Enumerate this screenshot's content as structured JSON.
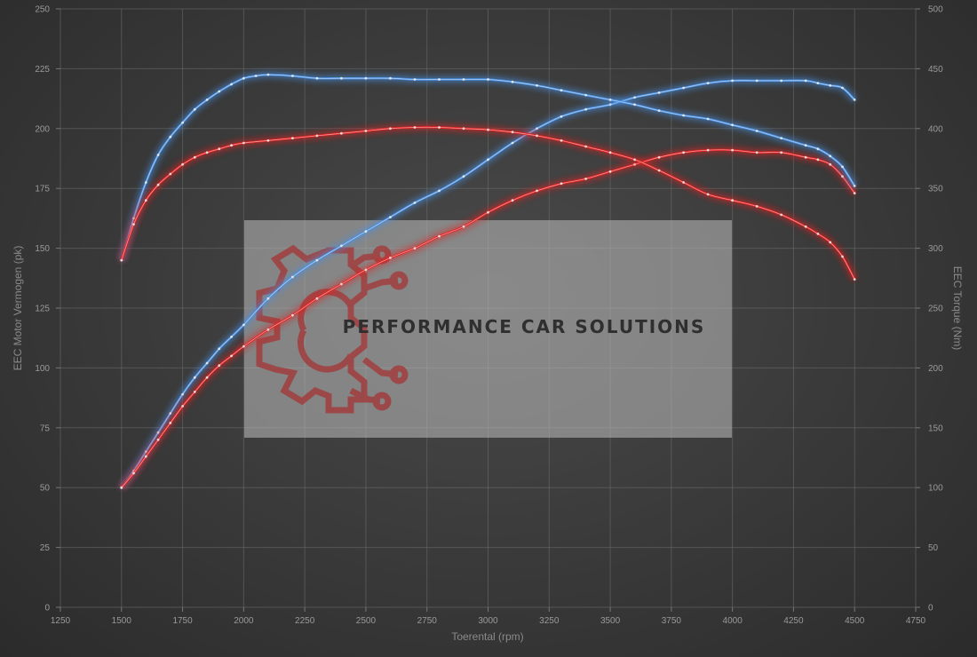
{
  "chart_data": {
    "type": "line",
    "title": "",
    "xlabel": "Toerental (rpm)",
    "ylabel_left": "EEC Motor Vermogen (pk)",
    "ylabel_right": "EEC Torque (Nm)",
    "xlim": [
      1250,
      4750
    ],
    "ylim_left": [
      0,
      250
    ],
    "ylim_right": [
      0,
      500
    ],
    "x_ticks": [
      1250,
      1500,
      1750,
      2000,
      2250,
      2500,
      2750,
      3000,
      3250,
      3500,
      3750,
      4000,
      4250,
      4500,
      4750
    ],
    "y_ticks_left": [
      0,
      25,
      50,
      75,
      100,
      125,
      150,
      175,
      200,
      225,
      250
    ],
    "y_ticks_right": [
      0,
      50,
      100,
      150,
      200,
      250,
      300,
      350,
      400,
      450,
      500
    ],
    "grid": true,
    "watermark": "PERFORMANCE CAR SOLUTIONS",
    "series": [
      {
        "axis": "left",
        "color": "#4a90e2",
        "x": [
          1500,
          1550,
          1600,
          1650,
          1700,
          1750,
          1800,
          1850,
          1900,
          1950,
          2000,
          2100,
          2200,
          2300,
          2400,
          2500,
          2600,
          2700,
          2800,
          2900,
          3000,
          3100,
          3200,
          3300,
          3400,
          3500,
          3600,
          3700,
          3800,
          3900,
          4000,
          4100,
          4200,
          4300,
          4350,
          4400,
          4450,
          4500
        ],
        "values": [
          50,
          57,
          65,
          73,
          81,
          89,
          96,
          102,
          108,
          113,
          118,
          129,
          138,
          145,
          151,
          157,
          163,
          169,
          174,
          180,
          187,
          194,
          200,
          205,
          208,
          210,
          213,
          215,
          217,
          219,
          220,
          220,
          220,
          220,
          219,
          218,
          217,
          212
        ]
      },
      {
        "axis": "left",
        "color": "#e02020",
        "x": [
          1500,
          1550,
          1600,
          1650,
          1700,
          1750,
          1800,
          1850,
          1900,
          1950,
          2000,
          2100,
          2200,
          2300,
          2400,
          2500,
          2600,
          2700,
          2800,
          2900,
          3000,
          3100,
          3200,
          3300,
          3400,
          3500,
          3600,
          3700,
          3800,
          3900,
          4000,
          4100,
          4200,
          4300,
          4350,
          4400,
          4450,
          4500
        ],
        "values": [
          50,
          56,
          63,
          70,
          77,
          84,
          90,
          96,
          101,
          105,
          109,
          116,
          122,
          129,
          135,
          141,
          146,
          150,
          155,
          159,
          165,
          170,
          174,
          177,
          179,
          182,
          185,
          188,
          190,
          191,
          191,
          190,
          190,
          188,
          187,
          185,
          180,
          173
        ]
      },
      {
        "axis": "right",
        "color": "#4a90e2",
        "x": [
          1500,
          1550,
          1600,
          1650,
          1700,
          1750,
          1800,
          1850,
          1900,
          1950,
          2000,
          2050,
          2100,
          2200,
          2300,
          2400,
          2500,
          2600,
          2700,
          2800,
          2900,
          3000,
          3100,
          3200,
          3300,
          3400,
          3500,
          3600,
          3700,
          3800,
          3900,
          4000,
          4100,
          4200,
          4300,
          4350,
          4400,
          4450,
          4500
        ],
        "values": [
          290,
          325,
          355,
          378,
          393,
          405,
          416,
          424,
          431,
          437,
          442,
          444,
          445,
          444,
          442,
          442,
          442,
          442,
          441,
          441,
          441,
          441,
          439,
          436,
          432,
          428,
          424,
          420,
          415,
          411,
          408,
          403,
          398,
          392,
          386,
          383,
          377,
          368,
          352
        ]
      },
      {
        "axis": "right",
        "color": "#e02020",
        "x": [
          1500,
          1550,
          1600,
          1650,
          1700,
          1750,
          1800,
          1850,
          1900,
          1950,
          2000,
          2100,
          2200,
          2300,
          2400,
          2500,
          2600,
          2700,
          2800,
          2900,
          3000,
          3100,
          3200,
          3300,
          3400,
          3500,
          3600,
          3700,
          3800,
          3900,
          4000,
          4100,
          4200,
          4300,
          4350,
          4400,
          4450,
          4500
        ],
        "values": [
          290,
          320,
          340,
          353,
          362,
          370,
          376,
          380,
          383,
          386,
          388,
          390,
          392,
          394,
          396,
          398,
          400,
          401,
          401,
          400,
          399,
          397,
          394,
          390,
          385,
          380,
          374,
          365,
          355,
          345,
          340,
          335,
          328,
          318,
          312,
          305,
          293,
          274
        ]
      }
    ]
  }
}
